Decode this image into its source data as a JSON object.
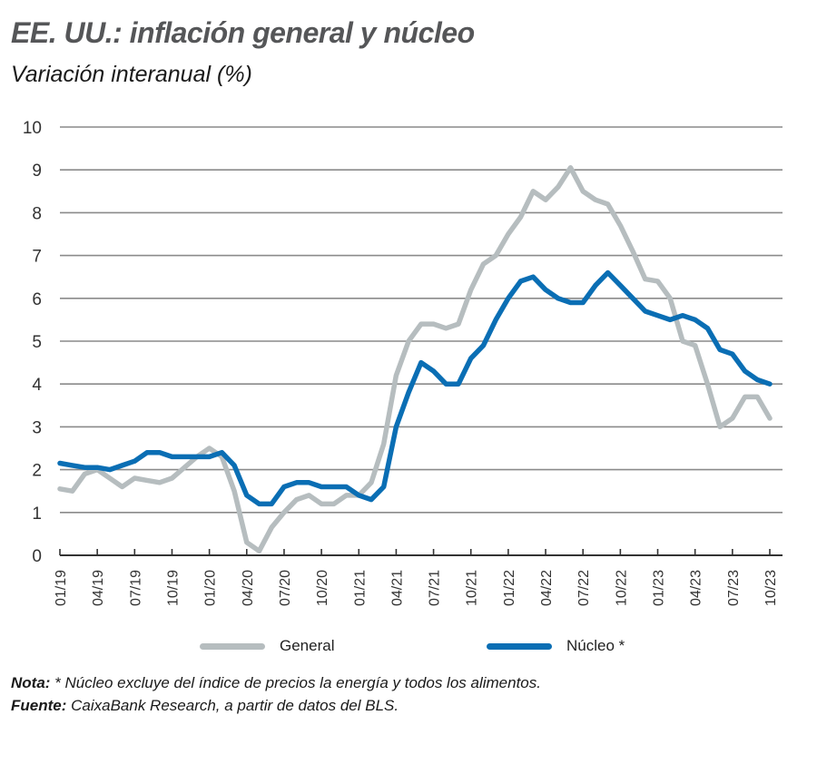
{
  "title": "EE. UU.: inflación general y núcleo",
  "subtitle": "Variación interanual (%)",
  "legend": {
    "general": "General",
    "core": "Núcleo *"
  },
  "colors": {
    "general": "#b6bdbf",
    "core": "#0a6eb4",
    "grid": "#8a8a8a",
    "axis": "#333333",
    "title": "#555658"
  },
  "notes": {
    "note_label": "Nota:",
    "note_text": " * Núcleo excluye del índice de precios la energía y todos los alimentos.",
    "source_label": "Fuente:",
    "source_text": " CaixaBank Research, a partir de datos del BLS."
  },
  "chart_data": {
    "type": "line",
    "title": "EE. UU.: inflación general y núcleo",
    "subtitle": "Variación interanual (%)",
    "xlabel": "",
    "ylabel": "",
    "ylim": [
      0,
      10
    ],
    "yticks": [
      0,
      1,
      2,
      3,
      4,
      5,
      6,
      7,
      8,
      9,
      10
    ],
    "grid": true,
    "legend_position": "bottom",
    "x": [
      "01/19",
      "02/19",
      "03/19",
      "04/19",
      "05/19",
      "06/19",
      "07/19",
      "08/19",
      "09/19",
      "10/19",
      "11/19",
      "12/19",
      "01/20",
      "02/20",
      "03/20",
      "04/20",
      "05/20",
      "06/20",
      "07/20",
      "08/20",
      "09/20",
      "10/20",
      "11/20",
      "12/20",
      "01/21",
      "02/21",
      "03/21",
      "04/21",
      "05/21",
      "06/21",
      "07/21",
      "08/21",
      "09/21",
      "10/21",
      "11/21",
      "12/21",
      "01/22",
      "02/22",
      "03/22",
      "04/22",
      "05/22",
      "06/22",
      "07/22",
      "08/22",
      "09/22",
      "10/22",
      "11/22",
      "12/22",
      "01/23",
      "02/23",
      "03/23",
      "04/23",
      "05/23",
      "06/23",
      "07/23",
      "08/23",
      "09/23",
      "10/23"
    ],
    "xticks": [
      "01/19",
      "04/19",
      "07/19",
      "10/19",
      "01/20",
      "04/20",
      "07/20",
      "10/20",
      "01/21",
      "04/21",
      "07/21",
      "10/21",
      "01/22",
      "04/22",
      "07/22",
      "10/22",
      "01/23",
      "04/23",
      "07/23",
      "10/23"
    ],
    "series": [
      {
        "name": "General",
        "values": [
          1.55,
          1.5,
          1.9,
          2.0,
          1.8,
          1.6,
          1.8,
          1.75,
          1.7,
          1.8,
          2.05,
          2.3,
          2.5,
          2.3,
          1.5,
          0.3,
          0.1,
          0.65,
          1.0,
          1.3,
          1.4,
          1.2,
          1.2,
          1.4,
          1.4,
          1.7,
          2.6,
          4.2,
          5.0,
          5.4,
          5.4,
          5.3,
          5.4,
          6.2,
          6.8,
          7.0,
          7.5,
          7.9,
          8.5,
          8.3,
          8.6,
          9.05,
          8.5,
          8.3,
          8.2,
          7.7,
          7.1,
          6.45,
          6.4,
          6.0,
          5.0,
          4.9,
          4.0,
          3.0,
          3.2,
          3.7,
          3.7,
          3.2
        ]
      },
      {
        "name": "Núcleo *",
        "values": [
          2.15,
          2.1,
          2.05,
          2.05,
          2.0,
          2.1,
          2.2,
          2.4,
          2.4,
          2.3,
          2.3,
          2.3,
          2.3,
          2.4,
          2.1,
          1.4,
          1.2,
          1.2,
          1.6,
          1.7,
          1.7,
          1.6,
          1.6,
          1.6,
          1.4,
          1.3,
          1.6,
          3.0,
          3.8,
          4.5,
          4.3,
          4.0,
          4.0,
          4.6,
          4.9,
          5.5,
          6.0,
          6.4,
          6.5,
          6.2,
          6.0,
          5.9,
          5.9,
          6.3,
          6.6,
          6.3,
          6.0,
          5.7,
          5.6,
          5.5,
          5.6,
          5.5,
          5.3,
          4.8,
          4.7,
          4.3,
          4.1,
          4.0
        ]
      }
    ]
  }
}
